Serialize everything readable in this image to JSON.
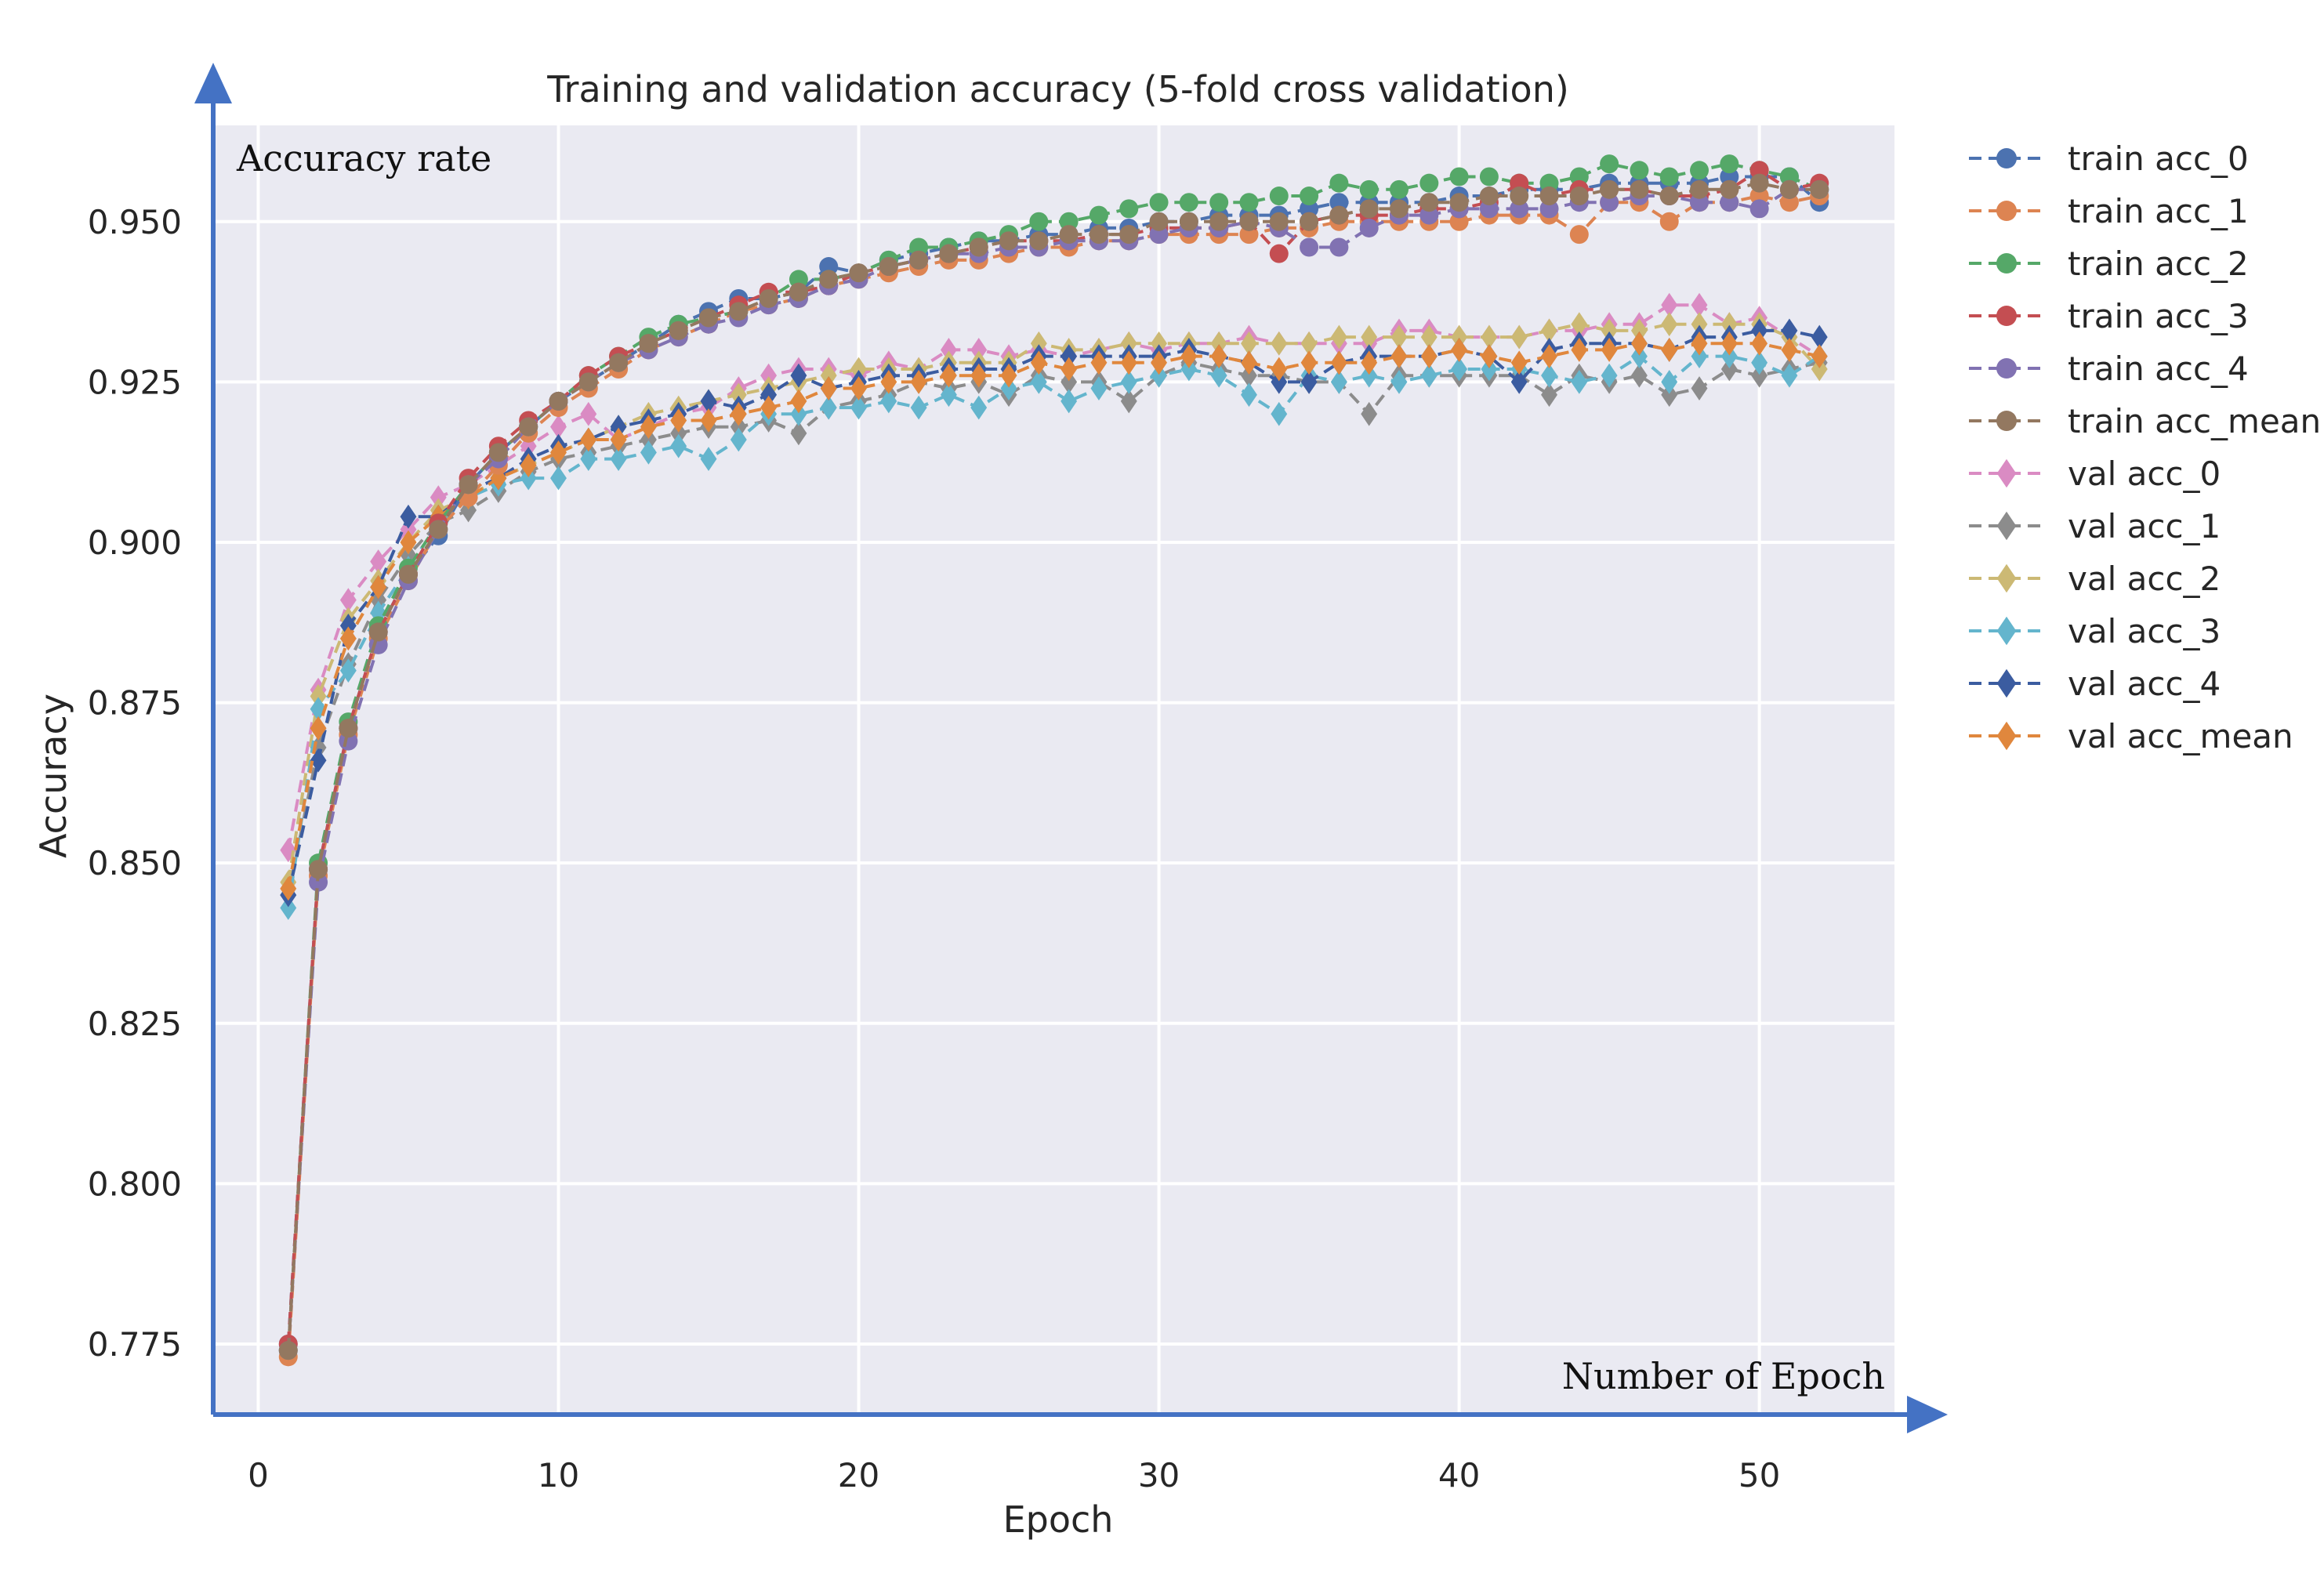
{
  "chart_data": {
    "type": "line",
    "title": "Training and validation accuracy (5-fold cross validation)",
    "xlabel": "Epoch",
    "ylabel": "Accuracy",
    "xlim": [
      -1.5,
      54.5
    ],
    "ylim": [
      0.764,
      0.965
    ],
    "grid": true,
    "legend_position": "outside-right",
    "x_ticks": [
      0,
      10,
      20,
      30,
      40,
      50
    ],
    "y_ticks": [
      0.775,
      0.8,
      0.825,
      0.85,
      0.875,
      0.9,
      0.925,
      0.95
    ],
    "y_tick_labels": [
      "0.775",
      "0.800",
      "0.825",
      "0.850",
      "0.875",
      "0.900",
      "0.925",
      "0.950"
    ],
    "annotations": {
      "y_axis_arrow_label": "Accuracy rate",
      "x_axis_arrow_label": "Number of Epoch"
    },
    "x": [
      1,
      2,
      3,
      4,
      5,
      6,
      7,
      8,
      9,
      10,
      11,
      12,
      13,
      14,
      15,
      16,
      17,
      18,
      19,
      20,
      21,
      22,
      23,
      24,
      25,
      26,
      27,
      28,
      29,
      30,
      31,
      32,
      33,
      34,
      35,
      36,
      37,
      38,
      39,
      40,
      41,
      42,
      43,
      44,
      45,
      46,
      47,
      48,
      49,
      50,
      51,
      52
    ],
    "series": [
      {
        "name": "train acc_0",
        "color": "#4c72b0",
        "marker": "circle",
        "values": [
          0.775,
          0.849,
          0.871,
          0.886,
          0.895,
          0.901,
          0.909,
          0.914,
          0.918,
          0.922,
          0.925,
          0.928,
          0.931,
          0.934,
          0.936,
          0.938,
          0.938,
          0.939,
          0.943,
          0.942,
          0.944,
          0.945,
          0.946,
          0.947,
          0.947,
          0.948,
          0.948,
          0.949,
          0.949,
          0.95,
          0.95,
          0.951,
          0.951,
          0.951,
          0.952,
          0.953,
          0.953,
          0.953,
          0.953,
          0.954,
          0.954,
          0.955,
          0.955,
          0.955,
          0.956,
          0.956,
          0.956,
          0.956,
          0.957,
          0.957,
          0.957,
          0.953
        ]
      },
      {
        "name": "train acc_1",
        "color": "#dd8452",
        "marker": "circle",
        "values": [
          0.773,
          0.848,
          0.87,
          0.885,
          0.894,
          0.902,
          0.907,
          0.912,
          0.917,
          0.921,
          0.924,
          0.927,
          0.93,
          0.932,
          0.934,
          0.936,
          0.937,
          0.938,
          0.94,
          0.941,
          0.942,
          0.943,
          0.944,
          0.944,
          0.945,
          0.946,
          0.946,
          0.947,
          0.947,
          0.948,
          0.948,
          0.948,
          0.948,
          0.949,
          0.949,
          0.95,
          0.95,
          0.95,
          0.95,
          0.95,
          0.951,
          0.951,
          0.951,
          0.948,
          0.953,
          0.953,
          0.95,
          0.953,
          0.953,
          0.954,
          0.953,
          0.954
        ]
      },
      {
        "name": "train acc_2",
        "color": "#55a868",
        "marker": "circle",
        "values": [
          0.774,
          0.85,
          0.872,
          0.887,
          0.896,
          0.903,
          0.909,
          0.914,
          0.918,
          0.922,
          0.926,
          0.929,
          0.932,
          0.934,
          0.935,
          0.936,
          0.938,
          0.941,
          0.941,
          0.942,
          0.944,
          0.946,
          0.946,
          0.947,
          0.948,
          0.95,
          0.95,
          0.951,
          0.952,
          0.953,
          0.953,
          0.953,
          0.953,
          0.954,
          0.954,
          0.956,
          0.955,
          0.955,
          0.956,
          0.957,
          0.957,
          0.956,
          0.956,
          0.957,
          0.959,
          0.958,
          0.957,
          0.958,
          0.959,
          0.958,
          0.957,
          0.955
        ]
      },
      {
        "name": "train acc_3",
        "color": "#c44e52",
        "marker": "circle",
        "values": [
          0.775,
          0.849,
          0.871,
          0.886,
          0.895,
          0.903,
          0.91,
          0.915,
          0.919,
          0.922,
          0.926,
          0.929,
          0.931,
          0.933,
          0.935,
          0.937,
          0.939,
          0.939,
          0.94,
          0.942,
          0.943,
          0.944,
          0.945,
          0.946,
          0.947,
          0.947,
          0.947,
          0.948,
          0.948,
          0.949,
          0.949,
          0.949,
          0.95,
          0.945,
          0.95,
          0.951,
          0.951,
          0.951,
          0.952,
          0.952,
          0.953,
          0.956,
          0.954,
          0.955,
          0.955,
          0.955,
          0.954,
          0.954,
          0.955,
          0.958,
          0.955,
          0.956
        ]
      },
      {
        "name": "train acc_4",
        "color": "#8172b2",
        "marker": "circle",
        "values": [
          0.774,
          0.847,
          0.869,
          0.884,
          0.894,
          0.902,
          0.909,
          0.913,
          0.918,
          0.922,
          0.925,
          0.928,
          0.93,
          0.932,
          0.934,
          0.935,
          0.937,
          0.938,
          0.94,
          0.941,
          0.943,
          0.944,
          0.945,
          0.945,
          0.946,
          0.946,
          0.947,
          0.947,
          0.947,
          0.948,
          0.949,
          0.949,
          0.95,
          0.949,
          0.946,
          0.946,
          0.949,
          0.951,
          0.951,
          0.952,
          0.952,
          0.952,
          0.952,
          0.953,
          0.953,
          0.954,
          0.954,
          0.953,
          0.953,
          0.952,
          0.955,
          0.955
        ]
      },
      {
        "name": "train acc_mean",
        "color": "#937860",
        "marker": "circle",
        "values": [
          0.774,
          0.849,
          0.871,
          0.886,
          0.895,
          0.902,
          0.909,
          0.914,
          0.918,
          0.922,
          0.925,
          0.928,
          0.931,
          0.933,
          0.935,
          0.936,
          0.938,
          0.939,
          0.941,
          0.942,
          0.943,
          0.944,
          0.945,
          0.946,
          0.947,
          0.947,
          0.948,
          0.948,
          0.948,
          0.95,
          0.95,
          0.95,
          0.95,
          0.95,
          0.95,
          0.951,
          0.952,
          0.952,
          0.953,
          0.953,
          0.954,
          0.954,
          0.954,
          0.954,
          0.955,
          0.955,
          0.954,
          0.955,
          0.955,
          0.956,
          0.955,
          0.955
        ]
      },
      {
        "name": "val acc_0",
        "color": "#da8bc3",
        "marker": "diamond",
        "values": [
          0.852,
          0.877,
          0.891,
          0.897,
          0.902,
          0.907,
          0.909,
          0.912,
          0.915,
          0.918,
          0.92,
          0.916,
          0.918,
          0.92,
          0.921,
          0.924,
          0.926,
          0.927,
          0.927,
          0.926,
          0.928,
          0.927,
          0.93,
          0.93,
          0.929,
          0.93,
          0.929,
          0.93,
          0.931,
          0.93,
          0.931,
          0.931,
          0.932,
          0.931,
          0.931,
          0.931,
          0.931,
          0.933,
          0.933,
          0.932,
          0.932,
          0.932,
          0.933,
          0.933,
          0.934,
          0.934,
          0.937,
          0.937,
          0.934,
          0.935,
          0.932,
          0.929
        ]
      },
      {
        "name": "val acc_1",
        "color": "#8c8c8c",
        "marker": "diamond",
        "values": [
          0.845,
          0.868,
          0.881,
          0.891,
          0.898,
          0.903,
          0.905,
          0.908,
          0.911,
          0.913,
          0.914,
          0.915,
          0.916,
          0.917,
          0.918,
          0.918,
          0.919,
          0.917,
          0.921,
          0.922,
          0.923,
          0.925,
          0.924,
          0.925,
          0.923,
          0.926,
          0.925,
          0.925,
          0.922,
          0.926,
          0.928,
          0.927,
          0.926,
          0.926,
          0.925,
          0.925,
          0.92,
          0.926,
          0.926,
          0.926,
          0.926,
          0.926,
          0.923,
          0.926,
          0.925,
          0.926,
          0.923,
          0.924,
          0.927,
          0.926,
          0.927,
          0.928
        ]
      },
      {
        "name": "val acc_2",
        "color": "#ccb974",
        "marker": "diamond",
        "values": [
          0.847,
          0.876,
          0.888,
          0.894,
          0.9,
          0.905,
          0.907,
          0.91,
          0.912,
          0.914,
          0.916,
          0.918,
          0.92,
          0.921,
          0.922,
          0.923,
          0.924,
          0.925,
          0.926,
          0.927,
          0.927,
          0.927,
          0.928,
          0.928,
          0.928,
          0.931,
          0.93,
          0.93,
          0.931,
          0.931,
          0.931,
          0.931,
          0.931,
          0.931,
          0.931,
          0.932,
          0.932,
          0.932,
          0.932,
          0.932,
          0.932,
          0.932,
          0.933,
          0.934,
          0.933,
          0.933,
          0.934,
          0.934,
          0.934,
          0.934,
          0.932,
          0.927
        ]
      },
      {
        "name": "val acc_3",
        "color": "#64b5cd",
        "marker": "diamond",
        "values": [
          0.843,
          0.874,
          0.88,
          0.889,
          0.896,
          0.903,
          0.907,
          0.909,
          0.91,
          0.91,
          0.913,
          0.913,
          0.914,
          0.915,
          0.913,
          0.916,
          0.92,
          0.92,
          0.921,
          0.921,
          0.922,
          0.921,
          0.923,
          0.921,
          0.924,
          0.925,
          0.922,
          0.924,
          0.925,
          0.926,
          0.927,
          0.926,
          0.923,
          0.92,
          0.926,
          0.925,
          0.926,
          0.925,
          0.926,
          0.927,
          0.927,
          0.927,
          0.926,
          0.925,
          0.926,
          0.929,
          0.925,
          0.929,
          0.929,
          0.928,
          0.926,
          0.929
        ]
      },
      {
        "name": "val acc_4",
        "color": "#3b5ca0",
        "marker": "diamond",
        "values": [
          0.845,
          0.866,
          0.887,
          0.893,
          0.904,
          0.904,
          0.908,
          0.91,
          0.913,
          0.915,
          0.916,
          0.918,
          0.919,
          0.92,
          0.922,
          0.921,
          0.923,
          0.926,
          0.924,
          0.925,
          0.926,
          0.926,
          0.927,
          0.927,
          0.927,
          0.929,
          0.929,
          0.929,
          0.929,
          0.929,
          0.93,
          0.929,
          0.928,
          0.925,
          0.925,
          0.928,
          0.929,
          0.929,
          0.929,
          0.93,
          0.929,
          0.925,
          0.93,
          0.931,
          0.931,
          0.931,
          0.93,
          0.932,
          0.932,
          0.933,
          0.933,
          0.932
        ]
      },
      {
        "name": "val acc_mean",
        "color": "#e0873d",
        "marker": "diamond",
        "values": [
          0.846,
          0.871,
          0.885,
          0.893,
          0.9,
          0.904,
          0.907,
          0.91,
          0.912,
          0.914,
          0.916,
          0.916,
          0.918,
          0.919,
          0.919,
          0.92,
          0.921,
          0.922,
          0.924,
          0.924,
          0.925,
          0.925,
          0.926,
          0.926,
          0.926,
          0.928,
          0.927,
          0.928,
          0.928,
          0.928,
          0.929,
          0.929,
          0.928,
          0.927,
          0.928,
          0.928,
          0.928,
          0.929,
          0.929,
          0.93,
          0.929,
          0.928,
          0.929,
          0.93,
          0.93,
          0.931,
          0.93,
          0.931,
          0.931,
          0.931,
          0.93,
          0.929
        ]
      }
    ]
  }
}
